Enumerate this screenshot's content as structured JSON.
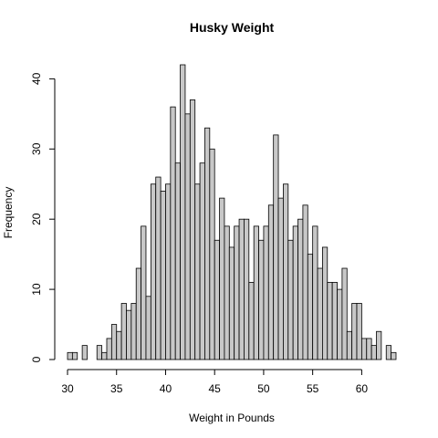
{
  "chart_data": {
    "type": "bar",
    "title": "Husky Weight",
    "xlabel": "Weight in Pounds",
    "ylabel": "Frequency",
    "bin_width": 0.5,
    "bin_starts": [
      30.0,
      30.5,
      31.0,
      31.5,
      32.0,
      32.5,
      33.0,
      33.5,
      34.0,
      34.5,
      35.0,
      35.5,
      36.0,
      36.5,
      37.0,
      37.5,
      38.0,
      38.5,
      39.0,
      39.5,
      40.0,
      40.5,
      41.0,
      41.5,
      42.0,
      42.5,
      43.0,
      43.5,
      44.0,
      44.5,
      45.0,
      45.5,
      46.0,
      46.5,
      47.0,
      47.5,
      48.0,
      48.5,
      49.0,
      49.5,
      50.0,
      50.5,
      51.0,
      51.5,
      52.0,
      52.5,
      53.0,
      53.5,
      54.0,
      54.5,
      55.0,
      55.5,
      56.0,
      56.5,
      57.0,
      57.5,
      58.0,
      58.5,
      59.0,
      59.5,
      60.0,
      60.5,
      61.0,
      61.5,
      62.0,
      62.5,
      63.0
    ],
    "values": [
      1,
      1,
      0,
      2,
      0,
      0,
      2,
      1,
      3,
      5,
      4,
      8,
      7,
      8,
      13,
      19,
      9,
      25,
      26,
      24,
      25,
      36,
      28,
      42,
      35,
      37,
      25,
      28,
      33,
      30,
      17,
      23,
      19,
      16,
      19,
      20,
      20,
      11,
      19,
      17,
      19,
      22,
      32,
      23,
      25,
      17,
      19,
      20,
      22,
      15,
      19,
      13,
      16,
      11,
      11,
      10,
      13,
      4,
      8,
      8,
      3,
      3,
      2,
      4,
      0,
      2,
      1
    ],
    "xlim": [
      30,
      63.5
    ],
    "ylim": [
      0,
      42
    ],
    "xticks": [
      30,
      35,
      40,
      45,
      50,
      55,
      60
    ],
    "yticks": [
      0,
      10,
      20,
      30,
      40
    ],
    "grid": false,
    "legend": "none"
  }
}
